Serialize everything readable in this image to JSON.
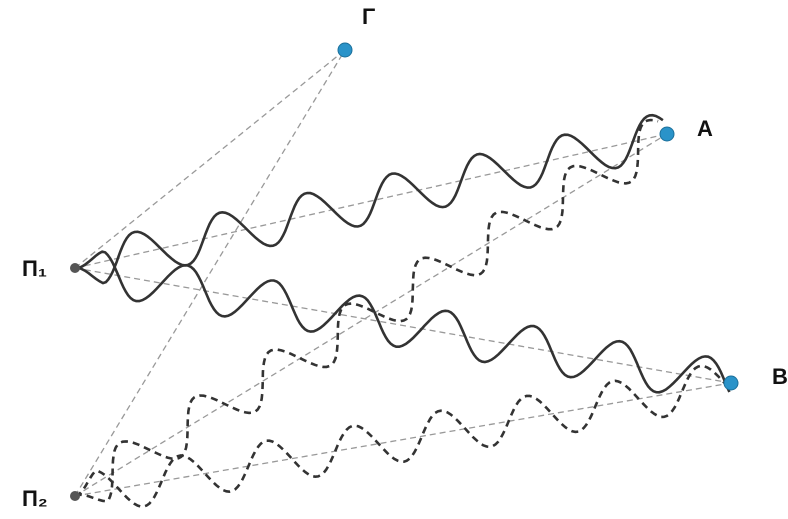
{
  "nodes": [
    {
      "label": "Γ"
    },
    {
      "label": "A"
    },
    {
      "label": "B"
    },
    {
      "label": "Π₁"
    },
    {
      "label": "Π₂"
    }
  ]
}
